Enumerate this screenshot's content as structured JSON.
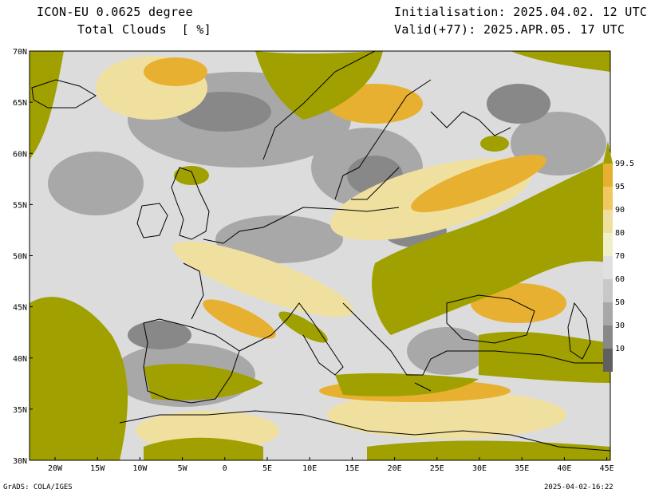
{
  "header": {
    "model": "ICON-EU 0.0625 degree",
    "field": "Total Clouds  [ %]",
    "init": "Initialisation: 2025.04.02. 12 UTC",
    "valid": "Valid(+77): 2025.APR.05. 17 UTC"
  },
  "axes": {
    "lat_labels": [
      "70N",
      "65N",
      "60N",
      "55N",
      "50N",
      "45N",
      "40N",
      "35N",
      "30N"
    ],
    "lon_labels": [
      "20W",
      "15W",
      "10W",
      "5W",
      "0",
      "5E",
      "10E",
      "15E",
      "20E",
      "25E",
      "30E",
      "35E",
      "40E",
      "45E"
    ]
  },
  "legend": {
    "labels": [
      "99.5",
      "95",
      "90",
      "80",
      "70",
      "60",
      "50",
      "30",
      "10"
    ],
    "colors": [
      "#a0a000",
      "#e8b030",
      "#f0c860",
      "#f0e0a0",
      "#f0f0c8",
      "#e0e0e0",
      "#c8c8c8",
      "#a8a8a8",
      "#888888",
      "#606060"
    ]
  },
  "footer": {
    "left": "GrADS: COLA/IGES",
    "right": "2025-04-02-16:22"
  }
}
